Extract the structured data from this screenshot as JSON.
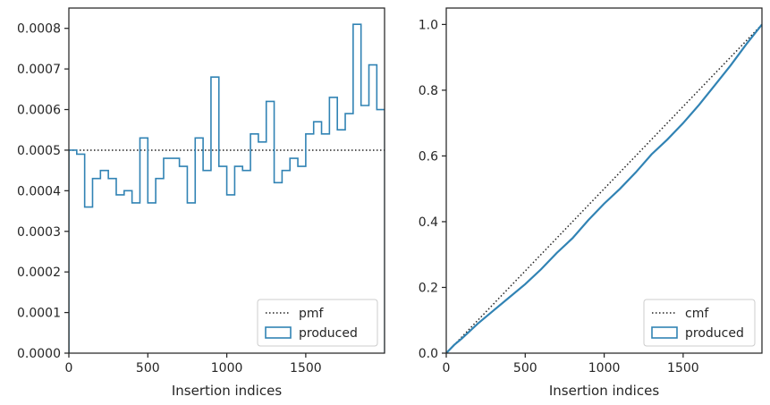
{
  "chart_data": [
    {
      "type": "step-histogram",
      "xlabel": "Insertion indices",
      "ylabel": "",
      "xlim": [
        0,
        1999
      ],
      "ylim": [
        0,
        0.00085
      ],
      "xticks": [
        0,
        500,
        1000,
        1500
      ],
      "xtick_labels": [
        "0",
        "500",
        "1000",
        "1500"
      ],
      "yticks": [
        0,
        0.0001,
        0.0002,
        0.0003,
        0.0004,
        0.0005,
        0.0006,
        0.0007,
        0.0008
      ],
      "ytick_labels": [
        "0.0000",
        "0.0001",
        "0.0002",
        "0.0003",
        "0.0004",
        "0.0005",
        "0.0006",
        "0.0007",
        "0.0008"
      ],
      "grid": false,
      "legend": {
        "placement": "lower right",
        "entries": [
          {
            "label": "pmf",
            "style": "dotted",
            "color": "#222222"
          },
          {
            "label": "produced",
            "style": "step",
            "color": "#3183b4"
          }
        ]
      },
      "series": [
        {
          "name": "pmf",
          "kind": "hline",
          "y": 0.0005
        },
        {
          "name": "produced",
          "kind": "step",
          "bin_width": 50,
          "bin_starts": [
            0,
            50,
            100,
            150,
            200,
            250,
            300,
            350,
            400,
            450,
            500,
            550,
            600,
            650,
            700,
            750,
            800,
            850,
            900,
            950,
            1000,
            1050,
            1100,
            1150,
            1200,
            1250,
            1300,
            1350,
            1400,
            1450,
            1500,
            1550,
            1600,
            1650,
            1700,
            1750,
            1800,
            1850,
            1900,
            1950
          ],
          "values": [
            0.0005,
            0.00049,
            0.00036,
            0.00043,
            0.00045,
            0.00043,
            0.00039,
            0.0004,
            0.00037,
            0.00053,
            0.00037,
            0.00043,
            0.00048,
            0.00048,
            0.00046,
            0.00037,
            0.00053,
            0.00045,
            0.00068,
            0.00046,
            0.00039,
            0.00046,
            0.00045,
            0.00054,
            0.00052,
            0.00062,
            0.00042,
            0.00045,
            0.00048,
            0.00046,
            0.00054,
            0.00057,
            0.00054,
            0.00063,
            0.00055,
            0.00059,
            0.00081,
            0.00061,
            0.00071,
            0.0006
          ]
        }
      ]
    },
    {
      "type": "line",
      "xlabel": "Insertion indices",
      "ylabel": "",
      "xlim": [
        0,
        1999
      ],
      "ylim": [
        0,
        1.05
      ],
      "xticks": [
        0,
        500,
        1000,
        1500
      ],
      "xtick_labels": [
        "0",
        "500",
        "1000",
        "1500"
      ],
      "yticks": [
        0,
        0.2,
        0.4,
        0.6,
        0.8,
        1.0
      ],
      "ytick_labels": [
        "0.0",
        "0.2",
        "0.4",
        "0.6",
        "0.8",
        "1.0"
      ],
      "grid": false,
      "legend": {
        "placement": "lower right",
        "entries": [
          {
            "label": "cmf",
            "style": "dotted",
            "color": "#222222"
          },
          {
            "label": "produced",
            "style": "step",
            "color": "#3183b4"
          }
        ]
      },
      "series": [
        {
          "name": "cmf",
          "kind": "line",
          "x": [
            0,
            1999
          ],
          "y": [
            0,
            1.0
          ]
        },
        {
          "name": "produced",
          "kind": "line",
          "x": [
            0,
            50,
            100,
            200,
            300,
            400,
            500,
            600,
            700,
            800,
            900,
            1000,
            1100,
            1200,
            1300,
            1400,
            1500,
            1600,
            1700,
            1800,
            1900,
            1999
          ],
          "y": [
            0,
            0.025,
            0.045,
            0.09,
            0.13,
            0.17,
            0.21,
            0.255,
            0.305,
            0.35,
            0.405,
            0.455,
            0.5,
            0.55,
            0.605,
            0.65,
            0.7,
            0.755,
            0.815,
            0.875,
            0.94,
            1.0
          ]
        }
      ]
    }
  ]
}
